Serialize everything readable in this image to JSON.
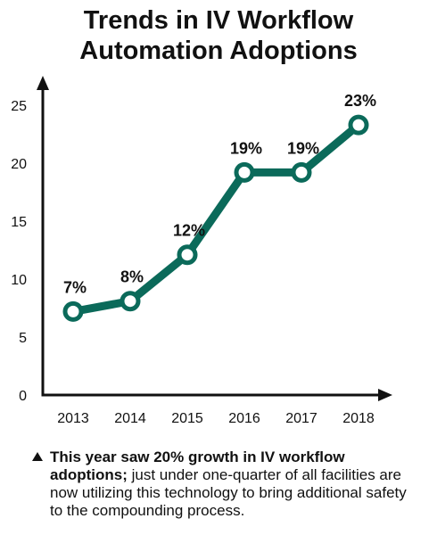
{
  "chart_data": {
    "type": "line",
    "title_lines": [
      "Trends in IV Workflow",
      "Automation Adoptions"
    ],
    "xlabel": "",
    "ylabel": "",
    "x": [
      "2013",
      "2014",
      "2015",
      "2016",
      "2017",
      "2018"
    ],
    "series": [
      {
        "values": [
          7.2,
          8.1,
          12.1,
          19.2,
          19.2,
          23.3
        ],
        "data_labels": [
          "7%",
          "8%",
          "12%",
          "19%",
          "19%",
          "23%"
        ]
      }
    ],
    "ylim": [
      0,
      25
    ],
    "yticks": [
      0,
      5,
      10,
      15,
      20,
      25
    ],
    "grid": false,
    "legend": "none",
    "line_color": "#0b6a5a"
  },
  "caption": {
    "bold": "This year saw 20% growth in IV workflow adoptions;",
    "rest": " just under one-quarter of all facilities are now utilizing this technology to bring additional safety to the compounding process."
  }
}
